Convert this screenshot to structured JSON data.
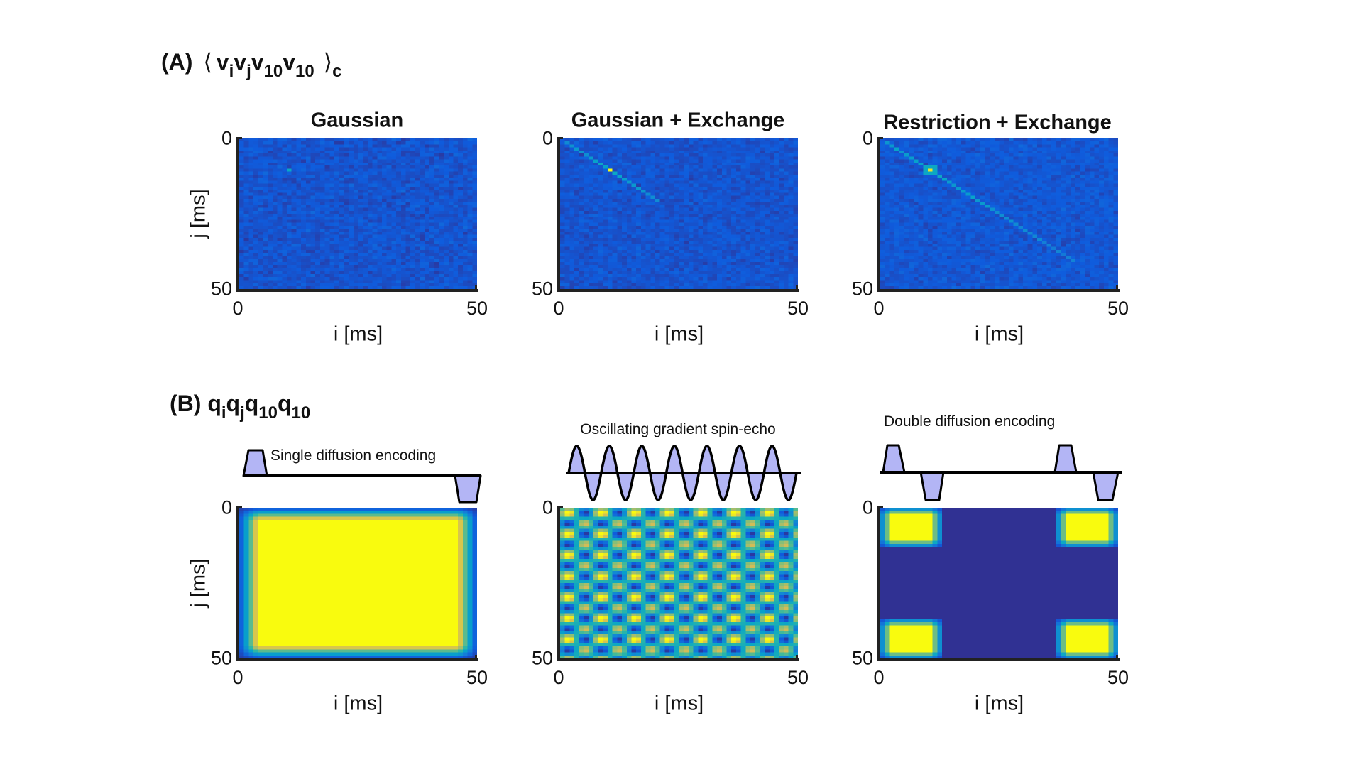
{
  "panel_a": {
    "label": "(A)",
    "open": "⟨",
    "terms": [
      {
        "base": "v",
        "sub": "i"
      },
      {
        "base": "v",
        "sub": "j"
      },
      {
        "base": "v",
        "sub": "10"
      },
      {
        "base": "v",
        "sub": "10"
      }
    ],
    "close": "⟩",
    "close_sub": "c"
  },
  "panel_b": {
    "label": "(B)",
    "terms": [
      {
        "base": "q",
        "sub": "i"
      },
      {
        "base": "q",
        "sub": "j"
      },
      {
        "base": "q",
        "sub": "10"
      },
      {
        "base": "q",
        "sub": "10"
      }
    ]
  },
  "axes": {
    "xlabel": "i [ms]",
    "ylabel": "j [ms]",
    "ticks": [
      "0",
      "50"
    ]
  },
  "colors": {
    "pulse_fill": "#b3b5f5",
    "pulse_stroke": "#000000",
    "colormap": [
      "#352A87",
      "#0F5CDD",
      "#1481D6",
      "#06A4CA",
      "#2EB7A4",
      "#87BF77",
      "#D1BB59",
      "#F9FB0E"
    ]
  },
  "sequences": [
    "Single diffusion encoding",
    "Oscillating gradient spin-echo",
    "Double diffusion encoding"
  ],
  "chart_data": [
    {
      "type": "heatmap",
      "panel": "A",
      "title": "Gaussian",
      "xlabel": "i [ms]",
      "ylabel": "j [ms]",
      "xlim": [
        0,
        50
      ],
      "ylim": [
        0,
        50
      ],
      "model": "noise_diagonal",
      "base": 0.12,
      "noise": 0.04,
      "peak": {
        "i": 10,
        "j": 10,
        "value": 0.45
      },
      "diagonal": {
        "from": 10,
        "to": 10,
        "value": 0
      },
      "blob": 0
    },
    {
      "type": "heatmap",
      "panel": "A",
      "title": "Gaussian + Exchange",
      "xlabel": "i [ms]",
      "ylabel": "j [ms]",
      "xlim": [
        0,
        50
      ],
      "ylim": [
        0,
        50
      ],
      "model": "noise_diagonal",
      "base": 0.12,
      "noise": 0.035,
      "peak": {
        "i": 10,
        "j": 10,
        "value": 1.0
      },
      "diagonal": {
        "from": 1,
        "to": 20,
        "value": 0.32
      },
      "blob": 0
    },
    {
      "type": "heatmap",
      "panel": "A",
      "title": "Restriction + Exchange",
      "xlabel": "i [ms]",
      "ylabel": "j [ms]",
      "xlim": [
        0,
        50
      ],
      "ylim": [
        0,
        50
      ],
      "model": "noise_diagonal",
      "base": 0.13,
      "noise": 0.035,
      "peak": {
        "i": 10,
        "j": 10,
        "value": 0.95
      },
      "diagonal": {
        "from": 1,
        "to": 40,
        "value": 0.3
      },
      "blob": 0.45
    },
    {
      "type": "heatmap",
      "panel": "B",
      "title": "Single diffusion encoding",
      "xlabel": "i [ms]",
      "ylabel": "j [ms]",
      "xlim": [
        0,
        50
      ],
      "ylim": [
        0,
        50
      ],
      "model": "sde",
      "pulse_ms": [
        [
          0,
          5
        ],
        [
          45,
          50
        ]
      ]
    },
    {
      "type": "heatmap",
      "panel": "B",
      "title": "Oscillating gradient spin-echo",
      "xlabel": "i [ms]",
      "ylabel": "j [ms]",
      "xlim": [
        0,
        50
      ],
      "ylim": [
        0,
        50
      ],
      "model": "ogse",
      "period_ms": 7
    },
    {
      "type": "heatmap",
      "panel": "B",
      "title": "Double diffusion encoding",
      "xlabel": "i [ms]",
      "ylabel": "j [ms]",
      "xlim": [
        0,
        50
      ],
      "ylim": [
        0,
        50
      ],
      "model": "dde",
      "pulse_centers_ms": [
        6,
        43
      ],
      "pulse_width_ms": 7
    }
  ]
}
